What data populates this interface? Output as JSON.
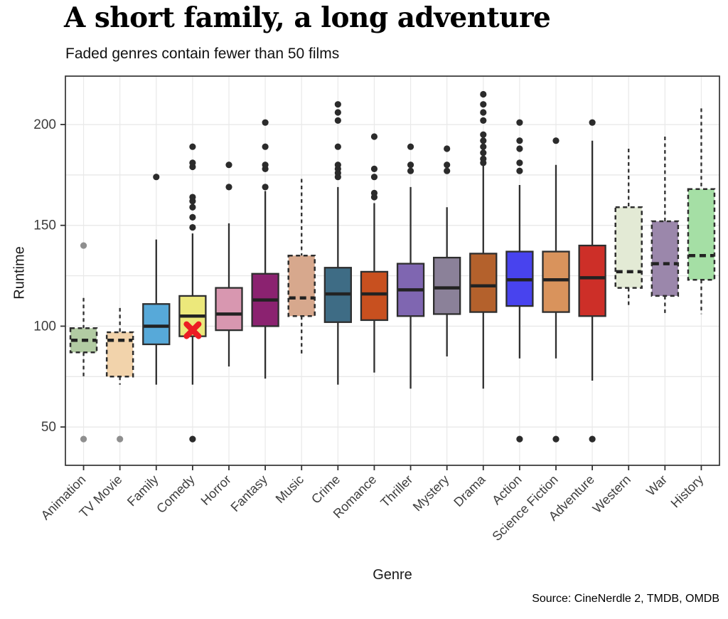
{
  "title": "A short family, a long adventure",
  "subtitle": "Faded genres contain fewer than 50 films",
  "source": "Source: CineNerdle 2, TMDB, OMDB",
  "chart_data": {
    "type": "boxplot",
    "title": "A short family, a long adventure",
    "subtitle": "Faded genres contain fewer than 50 films",
    "xlabel": "Genre",
    "ylabel": "Runtime",
    "yticks": [
      50,
      100,
      150,
      200
    ],
    "ygrid_minor": [
      75,
      125,
      175
    ],
    "ylim": [
      31,
      224
    ],
    "grid": true,
    "faded_meaning": "genre contains fewer than 50 films",
    "styles": {
      "solid_outlier_color": "#2b2b2b",
      "faded_outlier_color": "#8f8f8f",
      "box_edge_color": "#2e2e2e",
      "median_color": "#222222",
      "gridline_color": "#e9e9e9",
      "panel_border_color": "#333333"
    },
    "annotation": {
      "genre": "Comedy",
      "value": 98,
      "marker": "x",
      "color": "#ec1c24"
    },
    "genres": [
      {
        "name": "Animation",
        "faded": true,
        "color": "#b2cba3",
        "whisker_low": 75,
        "q1": 87,
        "median": 93,
        "q3": 99,
        "whisker_high": 114,
        "outliers": [
          140,
          44
        ]
      },
      {
        "name": "TV Movie",
        "faded": true,
        "color": "#f2d3ab",
        "whisker_low": 71,
        "q1": 75,
        "median": 93,
        "q3": 97,
        "whisker_high": 109,
        "outliers": [
          44
        ]
      },
      {
        "name": "Family",
        "faded": false,
        "color": "#57a9d9",
        "whisker_low": 71,
        "q1": 91,
        "median": 100,
        "q3": 111,
        "whisker_high": 143,
        "outliers": [
          174
        ]
      },
      {
        "name": "Comedy",
        "faded": false,
        "color": "#ece87b",
        "whisker_low": 71,
        "q1": 95,
        "median": 105,
        "q3": 115,
        "whisker_high": 146,
        "outliers": [
          149,
          154,
          159,
          162,
          164,
          179,
          181,
          189,
          44
        ]
      },
      {
        "name": "Horror",
        "faded": false,
        "color": "#d897b0",
        "whisker_low": 80,
        "q1": 98,
        "median": 106,
        "q3": 119,
        "whisker_high": 151,
        "outliers": [
          169,
          180
        ]
      },
      {
        "name": "Fantasy",
        "faded": false,
        "color": "#8b2270",
        "whisker_low": 74,
        "q1": 100,
        "median": 113,
        "q3": 126,
        "whisker_high": 167,
        "outliers": [
          169,
          178,
          180,
          189,
          201
        ]
      },
      {
        "name": "Music",
        "faded": true,
        "color": "#d7a88d",
        "whisker_low": 85,
        "q1": 105,
        "median": 114,
        "q3": 135,
        "whisker_high": 173,
        "outliers": []
      },
      {
        "name": "Crime",
        "faded": false,
        "color": "#3e6c85",
        "whisker_low": 71,
        "q1": 102,
        "median": 116,
        "q3": 129,
        "whisker_high": 169,
        "outliers": [
          174,
          176,
          178,
          180,
          189,
          202,
          206,
          210
        ]
      },
      {
        "name": "Romance",
        "faded": false,
        "color": "#c8501f",
        "whisker_low": 77,
        "q1": 103,
        "median": 116,
        "q3": 127,
        "whisker_high": 161,
        "outliers": [
          164,
          166,
          174,
          178,
          194
        ]
      },
      {
        "name": "Thriller",
        "faded": false,
        "color": "#7f66b1",
        "whisker_low": 69,
        "q1": 105,
        "median": 118,
        "q3": 131,
        "whisker_high": 169,
        "outliers": [
          177,
          180,
          189
        ]
      },
      {
        "name": "Mystery",
        "faded": false,
        "color": "#8b8199",
        "whisker_low": 85,
        "q1": 106,
        "median": 119,
        "q3": 134,
        "whisker_high": 159,
        "outliers": [
          177,
          180,
          188
        ]
      },
      {
        "name": "Drama",
        "faded": false,
        "color": "#b4612c",
        "whisker_low": 69,
        "q1": 107,
        "median": 120,
        "q3": 136,
        "whisker_high": 180,
        "outliers": [
          181,
          183,
          186,
          189,
          192,
          195,
          202,
          206,
          210,
          215
        ]
      },
      {
        "name": "Action",
        "faded": false,
        "color": "#4843ee",
        "whisker_low": 84,
        "q1": 110,
        "median": 123,
        "q3": 137,
        "whisker_high": 170,
        "outliers": [
          177,
          181,
          188,
          192,
          201,
          44
        ]
      },
      {
        "name": "Science Fiction",
        "faded": false,
        "color": "#d9935c",
        "whisker_low": 84,
        "q1": 107,
        "median": 123,
        "q3": 137,
        "whisker_high": 180,
        "outliers": [
          192,
          44
        ]
      },
      {
        "name": "Adventure",
        "faded": false,
        "color": "#cd2f28",
        "whisker_low": 73,
        "q1": 105,
        "median": 124,
        "q3": 140,
        "whisker_high": 192,
        "outliers": [
          201,
          44
        ]
      },
      {
        "name": "Western",
        "faded": true,
        "color": "#e3ead5",
        "whisker_low": 110,
        "q1": 119,
        "median": 127,
        "q3": 159,
        "whisker_high": 188,
        "outliers": []
      },
      {
        "name": "War",
        "faded": true,
        "color": "#9b87ab",
        "whisker_low": 106,
        "q1": 115,
        "median": 131,
        "q3": 152,
        "whisker_high": 194,
        "outliers": []
      },
      {
        "name": "History",
        "faded": true,
        "color": "#a5dfa5",
        "whisker_low": 106,
        "q1": 123,
        "median": 135,
        "q3": 168,
        "whisker_high": 208,
        "outliers": []
      }
    ]
  }
}
